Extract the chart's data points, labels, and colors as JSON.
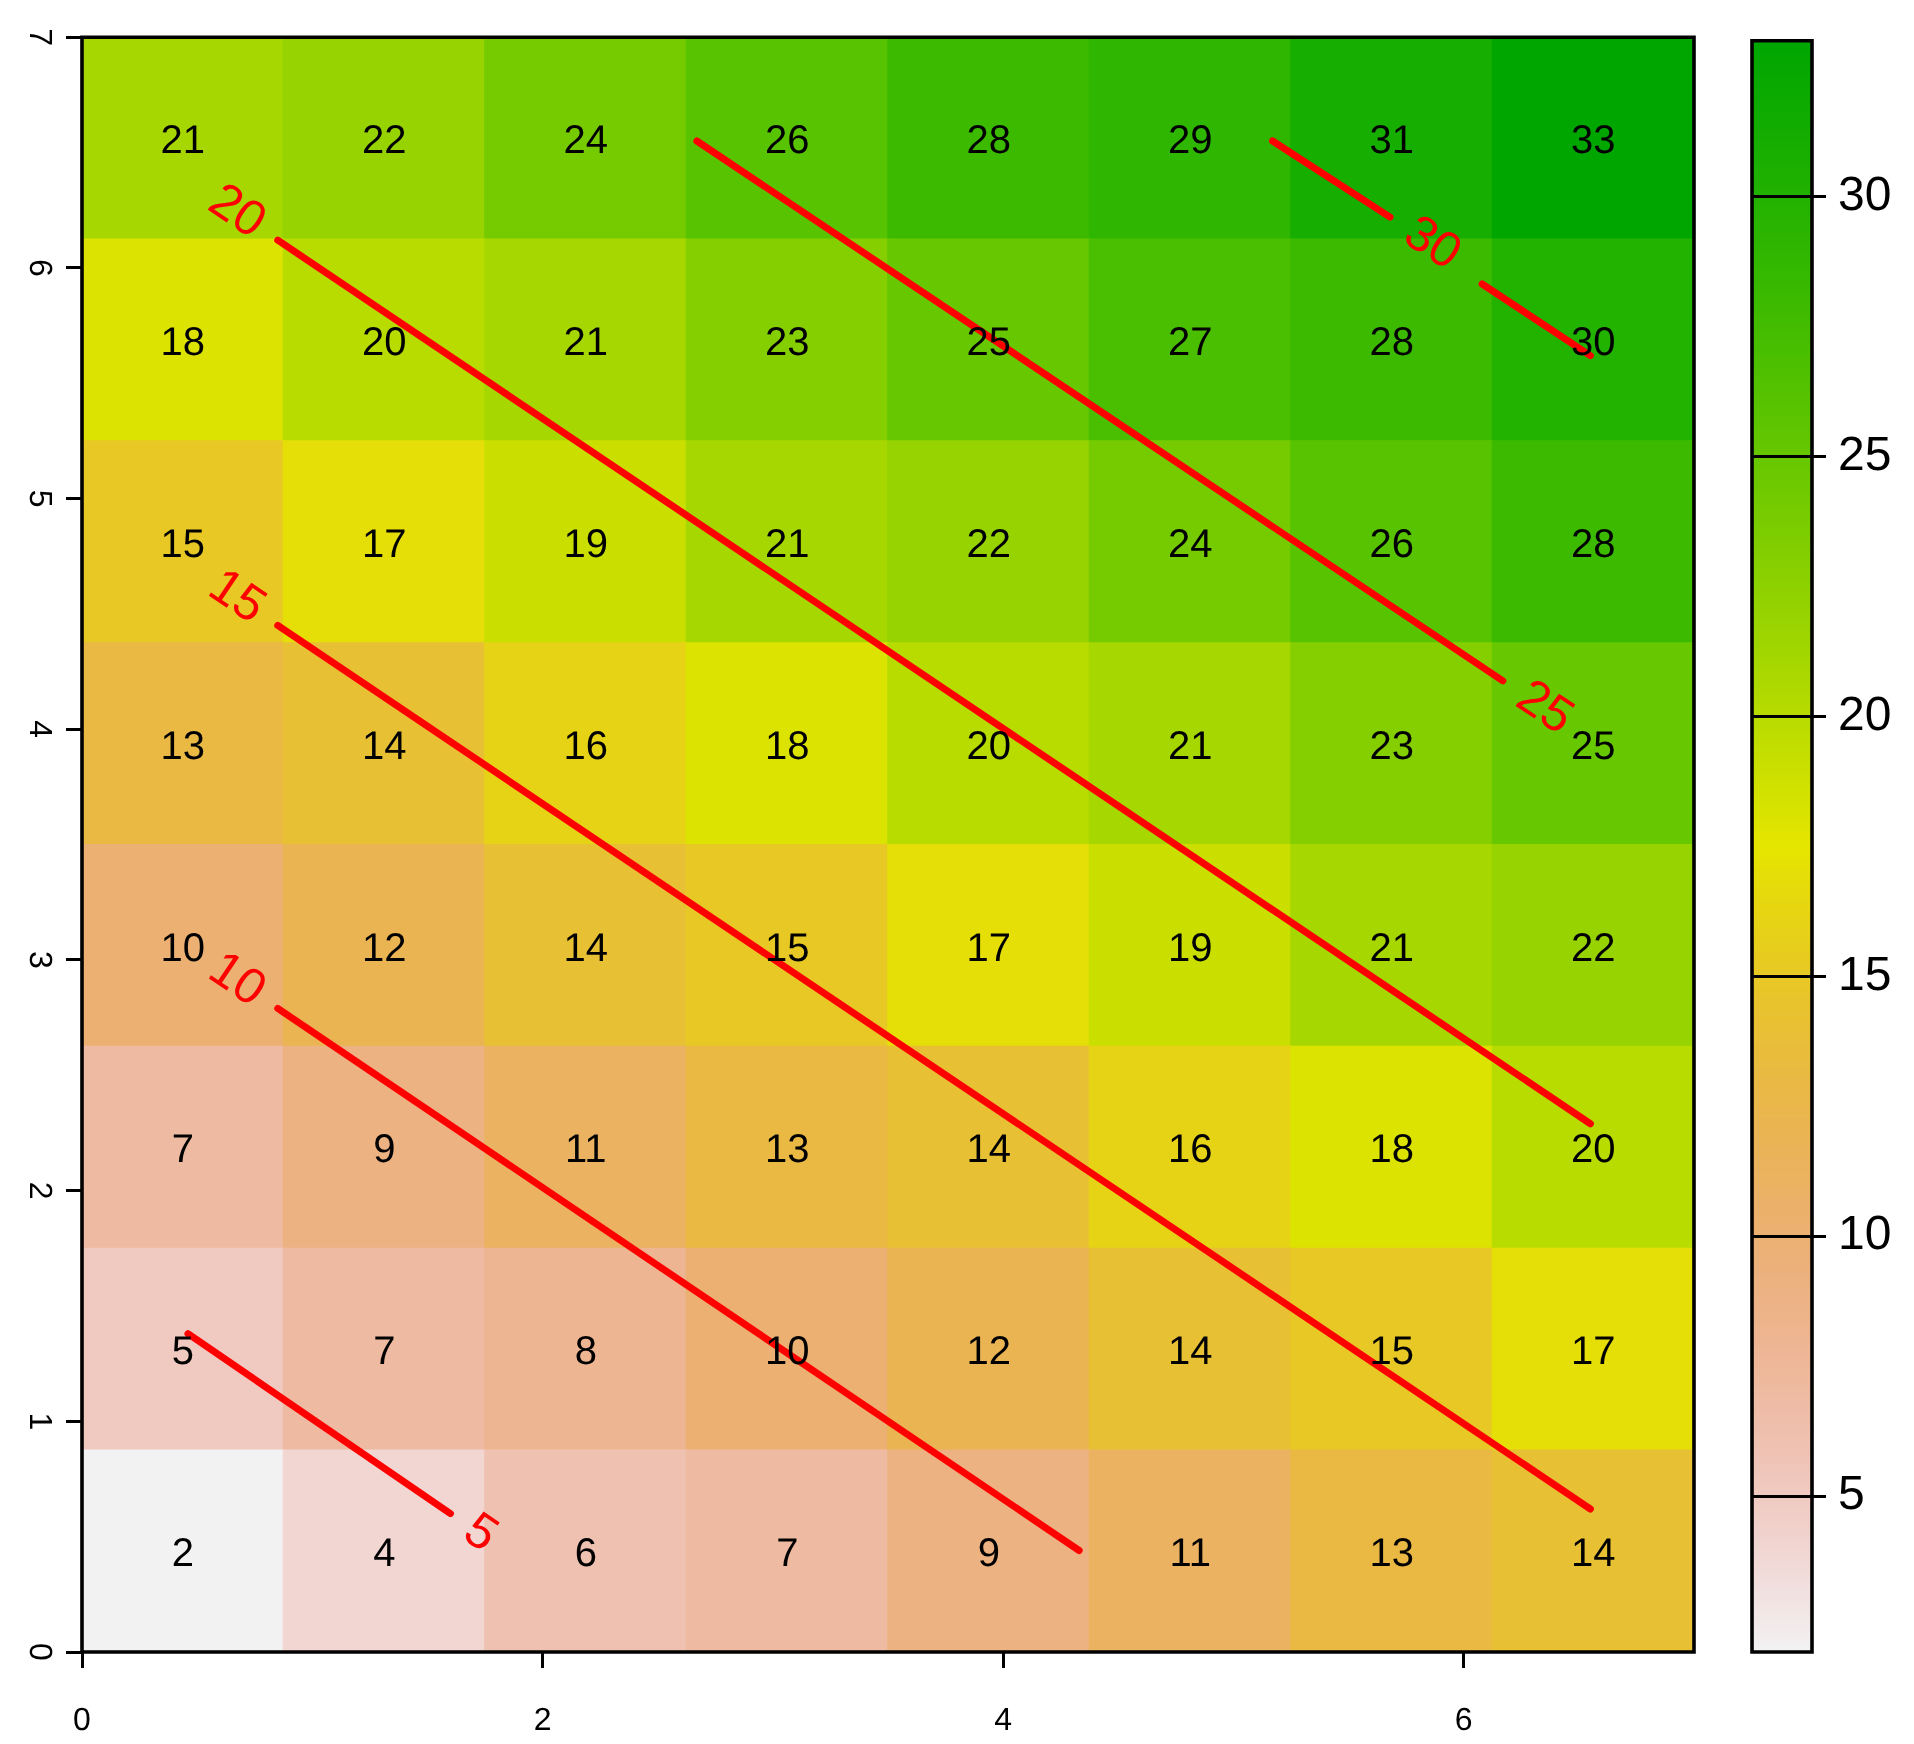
{
  "chart_data": {
    "type": "heatmap",
    "cells": [
      [
        21,
        22,
        24,
        26,
        28,
        29,
        31,
        33
      ],
      [
        18,
        20,
        21,
        23,
        25,
        27,
        28,
        30
      ],
      [
        15,
        17,
        19,
        21,
        22,
        24,
        26,
        28
      ],
      [
        13,
        14,
        16,
        18,
        20,
        21,
        23,
        25
      ],
      [
        10,
        12,
        14,
        15,
        17,
        19,
        21,
        22
      ],
      [
        7,
        9,
        11,
        13,
        14,
        16,
        18,
        20
      ],
      [
        5,
        7,
        8,
        10,
        12,
        14,
        15,
        17
      ],
      [
        2,
        4,
        6,
        7,
        9,
        11,
        13,
        14
      ]
    ],
    "data_labels": true,
    "clim": [
      2,
      33
    ],
    "cticks": [
      5,
      10,
      15,
      20,
      25,
      30
    ],
    "xlim": [
      0,
      7
    ],
    "xticks": [
      0,
      2,
      4,
      6
    ],
    "ylim": [
      0,
      7
    ],
    "yticks": [
      0,
      1,
      2,
      3,
      4,
      5,
      6,
      7
    ],
    "series": [
      {
        "type": "line",
        "color": "#ff0000",
        "x": [
          0.46,
          1.6
        ],
        "values": [
          1.38,
          0.6
        ],
        "value_labels": [
          null,
          null
        ]
      },
      {
        "type": "line",
        "color": "#ff0000",
        "x": [
          0.85,
          4.33
        ],
        "values": [
          2.79,
          0.44
        ],
        "value_labels": [
          null,
          null
        ]
      },
      {
        "type": "line",
        "color": "#ff0000",
        "x": [
          0.85,
          6.55
        ],
        "values": [
          4.45,
          0.62
        ],
        "value_labels": [
          null,
          null
        ]
      },
      {
        "type": "line",
        "color": "#ff0000",
        "x": [
          0.85,
          6.55
        ],
        "values": [
          6.12,
          2.29
        ],
        "value_labels": [
          null,
          null
        ]
      },
      {
        "type": "line",
        "color": "#ff0000",
        "x": [
          2.67,
          6.17
        ],
        "values": [
          6.55,
          4.21
        ],
        "value_labels": [
          null,
          null
        ]
      },
      {
        "type": "line",
        "color": "#ff0000",
        "x": [
          5.17,
          5.68,
          5.85,
          6.08,
          6.55
        ],
        "values": [
          6.55,
          6.22,
          null,
          5.93,
          5.62
        ],
        "value_labels": [
          null,
          null,
          null,
          null,
          null
        ]
      }
    ],
    "annotations": [
      {
        "text": "5",
        "x": 1.6,
        "y": 0.6
      },
      {
        "text": "10",
        "x": 0.85,
        "y": 2.79
      },
      {
        "text": "15",
        "x": 0.85,
        "y": 4.45
      },
      {
        "text": "20",
        "x": 0.85,
        "y": 6.12
      },
      {
        "text": "25",
        "x": 6.17,
        "y": 4.21
      },
      {
        "text": "30",
        "x": 5.68,
        "y": 6.22
      }
    ]
  }
}
